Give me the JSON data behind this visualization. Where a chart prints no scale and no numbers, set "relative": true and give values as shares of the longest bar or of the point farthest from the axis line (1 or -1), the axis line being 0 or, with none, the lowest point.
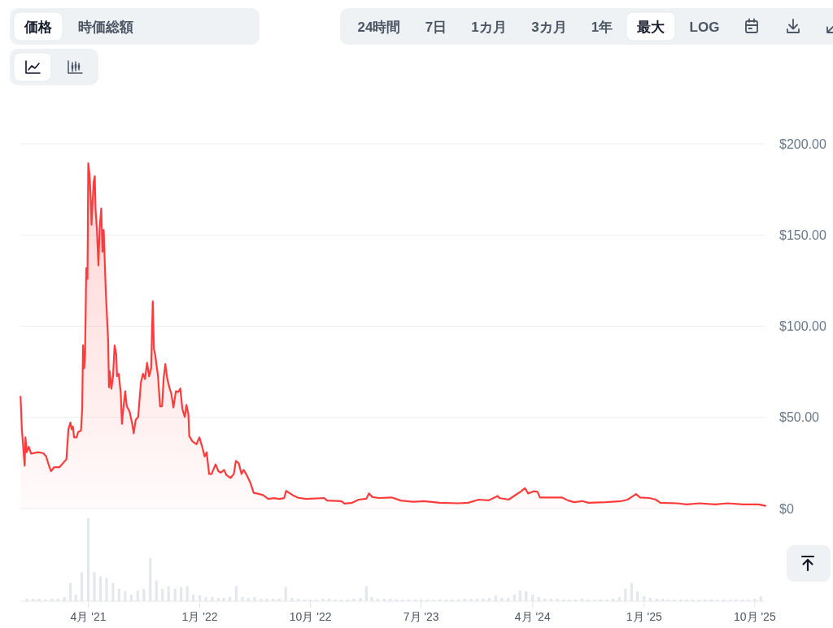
{
  "chart_data": [
    {
      "type": "other",
      "annotations": [
        "価格",
        "時価総額",
        "24時間",
        "7日",
        "1カ月",
        "3カ月",
        "1年",
        "最大",
        "LOG"
      ]
    },
    {
      "type": "area",
      "color": "#ff3b3b",
      "x": [
        "2020-10-16",
        "2020-10-19",
        "2020-10-23",
        "2020-10-26",
        "2020-10-28",
        "2020-10-31",
        "2020-11-05",
        "2020-11-11",
        "2020-11-28",
        "2020-12-11",
        "2020-12-18",
        "2020-12-25",
        "2020-12-30",
        "2021-01-07",
        "2021-01-20",
        "2021-02-06",
        "2021-02-11",
        "2021-02-16",
        "2021-02-19",
        "2021-02-22",
        "2021-02-25",
        "2021-03-03",
        "2021-03-07",
        "2021-03-14",
        "2021-03-17",
        "2021-03-19",
        "2021-03-22",
        "2021-03-24",
        "2021-03-27",
        "2021-03-30",
        "2021-04-01",
        "2021-04-04",
        "2021-04-07",
        "2021-04-09",
        "2021-04-14",
        "2021-04-17",
        "2021-04-19",
        "2021-04-22",
        "2021-04-26",
        "2021-04-29",
        "2021-05-03",
        "2021-05-06",
        "2021-05-09",
        "2021-05-14",
        "2021-05-20",
        "2021-05-22",
        "2021-05-24",
        "2021-05-28",
        "2021-06-01",
        "2021-06-05",
        "2021-06-09",
        "2021-06-11",
        "2021-06-15",
        "2021-06-20",
        "2021-06-23",
        "2021-06-27",
        "2021-07-01",
        "2021-07-05",
        "2021-07-12",
        "2021-07-19",
        "2021-07-22",
        "2021-07-27",
        "2021-08-02",
        "2021-08-09",
        "2021-08-14",
        "2021-08-19",
        "2021-08-24",
        "2021-08-29",
        "2021-09-03",
        "2021-09-07",
        "2021-09-10",
        "2021-09-13",
        "2021-09-20",
        "2021-09-25",
        "2021-09-30",
        "2021-10-04",
        "2021-10-08",
        "2021-10-13",
        "2021-10-18",
        "2021-10-23",
        "2021-10-28",
        "2021-11-03",
        "2021-11-09",
        "2021-11-14",
        "2021-11-19",
        "2021-11-25",
        "2021-11-29",
        "2021-12-04",
        "2021-12-06",
        "2021-12-14",
        "2021-12-24",
        "2021-12-31",
        "2022-01-06",
        "2022-01-13",
        "2022-01-18",
        "2022-01-24",
        "2022-01-30",
        "2022-02-09",
        "2022-02-16",
        "2022-02-22",
        "2022-03-02",
        "2022-03-08",
        "2022-03-18",
        "2022-03-26",
        "2022-03-31",
        "2022-04-07",
        "2022-04-14",
        "2022-04-19",
        "2022-04-27",
        "2022-05-05",
        "2022-05-14",
        "2022-05-24",
        "2022-06-06",
        "2022-06-19",
        "2022-07-03",
        "2022-07-16",
        "2022-07-28",
        "2022-08-02",
        "2022-08-18",
        "2022-09-01",
        "2022-09-21",
        "2022-11-04",
        "2022-11-11",
        "2022-12-16",
        "2022-12-24",
        "2023-01-12",
        "2023-01-28",
        "2023-02-16",
        "2023-02-22",
        "2023-03-03",
        "2023-03-19",
        "2023-04-19",
        "2023-05-12",
        "2023-06-11",
        "2023-07-08",
        "2023-08-16",
        "2023-10-01",
        "2023-10-25",
        "2023-11-20",
        "2023-12-14",
        "2024-01-06",
        "2024-01-10",
        "2024-02-02",
        "2024-02-21",
        "2024-03-04",
        "2024-03-13",
        "2024-03-21",
        "2024-04-04",
        "2024-04-13",
        "2024-04-19",
        "2024-06-12",
        "2024-06-28",
        "2024-07-13",
        "2024-08-01",
        "2024-08-17",
        "2024-09-28",
        "2024-11-06",
        "2024-11-21",
        "2024-12-03",
        "2024-12-12",
        "2024-12-22",
        "2025-01-14",
        "2025-01-30",
        "2025-02-10",
        "2025-03-24",
        "2025-04-16",
        "2025-05-17",
        "2025-06-25",
        "2025-07-26",
        "2025-09-02",
        "2025-10-11",
        "2025-10-27"
      ],
      "values": [
        61.3,
        44.2,
        32.4,
        23.5,
        39,
        30.9,
        33.9,
        30.1,
        30.9,
        30.4,
        28.6,
        23.5,
        20.5,
        22.7,
        22.7,
        27,
        43.5,
        47.2,
        43.5,
        45,
        39,
        39,
        42,
        42.8,
        54.7,
        89.5,
        76.9,
        84.3,
        131.8,
        125.9,
        189.4,
        183.1,
        170.5,
        155.6,
        178.6,
        182.3,
        163.8,
        154.1,
        133.3,
        154.1,
        164.5,
        140.8,
        152.7,
        120,
        91.8,
        66.5,
        75.4,
        65.8,
        72.5,
        89.5,
        84.3,
        72.5,
        73.9,
        63.6,
        46.5,
        56.1,
        64.3,
        56.1,
        53.1,
        45.7,
        41.3,
        48.7,
        50.2,
        69.5,
        73.9,
        71,
        79.9,
        72.5,
        76.9,
        113.6,
        87.3,
        84.3,
        72.5,
        56.1,
        56.1,
        71.7,
        79.2,
        71,
        66.5,
        62.8,
        55.4,
        64.3,
        64,
        65.8,
        54.7,
        50.2,
        56.9,
        51.7,
        39.8,
        36.8,
        35.3,
        39,
        34.6,
        28.6,
        30.9,
        19,
        19,
        24.2,
        20.5,
        19.7,
        21.2,
        18.3,
        16.8,
        19,
        26.1,
        24.9,
        19,
        21.2,
        18.3,
        14.6,
        8.6,
        8.2,
        7.4,
        5.3,
        5.7,
        5.3,
        5.7,
        9.7,
        7.4,
        5.9,
        5.3,
        5.8,
        4.4,
        4.1,
        2.7,
        3.2,
        4.9,
        5.4,
        8.3,
        6.3,
        5.8,
        6.1,
        4.4,
        3.7,
        4.1,
        3.2,
        2.9,
        3.2,
        4.9,
        4.5,
        6.9,
        5.8,
        4.9,
        7.8,
        9.5,
        11.2,
        8.3,
        9.5,
        9.2,
        6.1,
        6.1,
        4.4,
        3.5,
        4.1,
        3.2,
        3.5,
        4.1,
        4.9,
        6.6,
        8,
        6.1,
        5.8,
        4.9,
        3.2,
        2.9,
        2.3,
        2.9,
        2.3,
        2.9,
        2.3,
        2.3,
        1.5
      ],
      "xlim": [
        "2020-10-16",
        "2025-10-27"
      ],
      "ylim": [
        0,
        200
      ],
      "yticks": [
        {
          "value": 0,
          "label": "$0"
        },
        {
          "value": 50,
          "label": "$50.00"
        },
        {
          "value": 100,
          "label": "$100.00"
        },
        {
          "value": 150,
          "label": "$150.00"
        },
        {
          "value": 200,
          "label": "$200.00"
        }
      ],
      "grid": "y",
      "tick_labels": "y"
    },
    {
      "type": "bar",
      "relative": true,
      "color": "#e4e7ec",
      "x": [
        "2020-11-01",
        "2020-11-16",
        "2020-12-01",
        "2020-12-16",
        "2021-01-01",
        "2021-01-16",
        "2021-02-01",
        "2021-02-16",
        "2021-03-01",
        "2021-03-16",
        "2021-04-01",
        "2021-04-16",
        "2021-05-01",
        "2021-05-16",
        "2021-06-01",
        "2021-06-16",
        "2021-07-01",
        "2021-07-16",
        "2021-08-01",
        "2021-08-16",
        "2021-09-01",
        "2021-09-16",
        "2021-10-01",
        "2021-10-16",
        "2021-11-01",
        "2021-11-16",
        "2021-12-01",
        "2021-12-16",
        "2022-01-01",
        "2022-01-16",
        "2022-02-01",
        "2022-02-16",
        "2022-03-01",
        "2022-03-16",
        "2022-04-01",
        "2022-04-16",
        "2022-05-01",
        "2022-05-16",
        "2022-06-01",
        "2022-06-16",
        "2022-07-01",
        "2022-07-16",
        "2022-08-01",
        "2022-08-16",
        "2022-09-01",
        "2022-09-16",
        "2022-10-01",
        "2022-10-16",
        "2022-11-01",
        "2022-11-16",
        "2022-12-01",
        "2022-12-16",
        "2023-01-01",
        "2023-01-16",
        "2023-02-01",
        "2023-02-16",
        "2023-03-01",
        "2023-03-16",
        "2023-04-01",
        "2023-04-16",
        "2023-05-01",
        "2023-05-16",
        "2023-06-01",
        "2023-06-16",
        "2023-07-01",
        "2023-07-16",
        "2023-08-01",
        "2023-08-16",
        "2023-09-01",
        "2023-09-16",
        "2023-10-01",
        "2023-10-16",
        "2023-11-01",
        "2023-11-16",
        "2023-12-01",
        "2023-12-16",
        "2024-01-01",
        "2024-01-16",
        "2024-02-01",
        "2024-02-16",
        "2024-03-01",
        "2024-03-16",
        "2024-04-01",
        "2024-04-16",
        "2024-05-01",
        "2024-05-16",
        "2024-06-01",
        "2024-06-16",
        "2024-07-01",
        "2024-07-16",
        "2024-08-01",
        "2024-08-16",
        "2024-09-01",
        "2024-09-16",
        "2024-10-01",
        "2024-10-16",
        "2024-11-01",
        "2024-11-16",
        "2024-12-01",
        "2024-12-16",
        "2025-01-01",
        "2025-01-16",
        "2025-02-01",
        "2025-02-16",
        "2025-03-01",
        "2025-03-16",
        "2025-04-01",
        "2025-04-16",
        "2025-05-01",
        "2025-05-16",
        "2025-06-01",
        "2025-06-16",
        "2025-07-01",
        "2025-07-16",
        "2025-08-01",
        "2025-08-16",
        "2025-09-01",
        "2025-09-16",
        "2025-10-01",
        "2025-10-16"
      ],
      "values": [
        0.03,
        0.03,
        0.03,
        0.02,
        0.03,
        0.03,
        0.05,
        0.22,
        0.08,
        0.35,
        1,
        0.35,
        0.3,
        0.28,
        0.22,
        0.15,
        0.12,
        0.08,
        0.13,
        0.15,
        0.52,
        0.25,
        0.15,
        0.18,
        0.15,
        0.17,
        0.18,
        0.08,
        0.07,
        0.05,
        0.05,
        0.04,
        0.04,
        0.05,
        0.18,
        0.05,
        0.04,
        0.05,
        0.03,
        0.03,
        0.03,
        0.03,
        0.17,
        0.04,
        0.03,
        0.02,
        0.02,
        0.02,
        0.03,
        0.03,
        0.02,
        0.02,
        0.02,
        0.03,
        0.04,
        0.18,
        0.05,
        0.03,
        0.03,
        0.03,
        0.02,
        0.02,
        0.02,
        0.02,
        0.02,
        0.02,
        0.02,
        0.02,
        0.02,
        0.02,
        0.02,
        0.03,
        0.03,
        0.03,
        0.03,
        0.04,
        0.07,
        0.04,
        0.04,
        0.08,
        0.13,
        0.12,
        0.08,
        0.05,
        0.03,
        0.03,
        0.03,
        0.02,
        0.02,
        0.02,
        0.03,
        0.02,
        0.02,
        0.02,
        0.02,
        0.03,
        0.05,
        0.15,
        0.22,
        0.12,
        0.06,
        0.04,
        0.03,
        0.03,
        0.02,
        0.02,
        0.02,
        0.02,
        0.02,
        0.02,
        0.02,
        0.02,
        0.02,
        0.02,
        0.02,
        0.02,
        0.02,
        0.02,
        0.03,
        0.06
      ],
      "xlim": [
        "2020-10-16",
        "2025-10-27"
      ],
      "xticks": [
        {
          "value": "2021-04-01",
          "label": "4月 '21"
        },
        {
          "value": "2022-01-01",
          "label": "1月 '22"
        },
        {
          "value": "2022-10-01",
          "label": "10月 '22"
        },
        {
          "value": "2023-07-01",
          "label": "7月 '23"
        },
        {
          "value": "2024-04-01",
          "label": "4月 '24"
        },
        {
          "value": "2025-01-01",
          "label": "1月 '25"
        },
        {
          "value": "2025-10-01",
          "label": "10月 '25"
        }
      ],
      "tick_labels": "x"
    }
  ]
}
